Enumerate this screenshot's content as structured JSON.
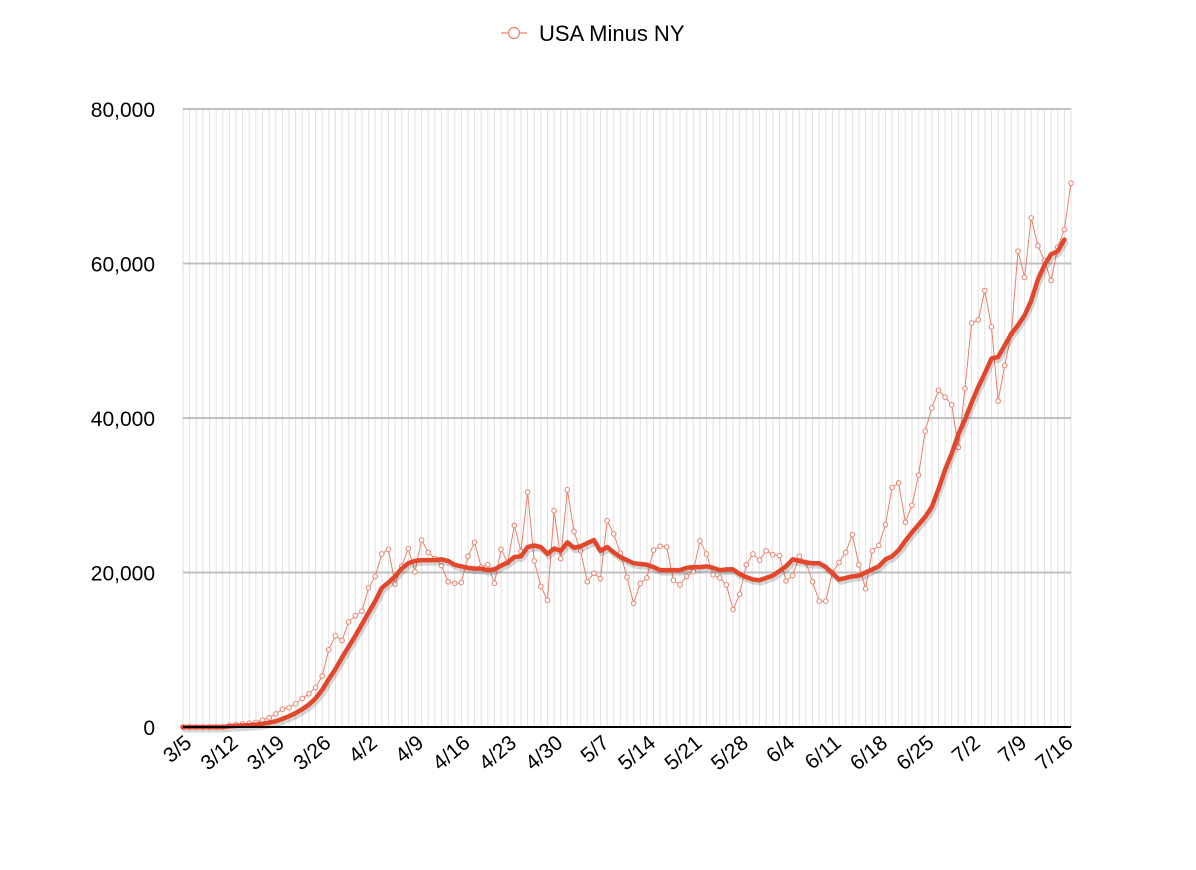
{
  "chart_data": {
    "type": "line",
    "title": "",
    "xlabel": "",
    "ylabel": "",
    "ylim": [
      0,
      80000
    ],
    "y_ticks": [
      0,
      20000,
      40000,
      60000,
      80000
    ],
    "y_tick_labels": [
      "0",
      "20,000",
      "40,000",
      "60,000",
      "80,000"
    ],
    "x_tick_labels": [
      "3/5",
      "3/12",
      "3/19",
      "3/26",
      "4/2",
      "4/9",
      "4/16",
      "4/23",
      "4/30",
      "5/7",
      "5/14",
      "5/21",
      "5/28",
      "6/4",
      "6/11",
      "6/18",
      "6/25",
      "7/2",
      "7/9",
      "7/16"
    ],
    "grid": true,
    "legend": "top-center",
    "colors": {
      "daily": "#e9806a",
      "average": "#e2462b",
      "grid_major": "#c0c0c0",
      "grid_minor": "#e0e0e0",
      "axis": "#000000"
    },
    "series": [
      {
        "name": "USA Minus NY",
        "marker": "open-circle",
        "values": [
          0,
          0,
          0,
          0,
          0,
          0,
          0,
          200,
          300,
          400,
          500,
          600,
          900,
          1200,
          1700,
          2300,
          2500,
          3000,
          3700,
          4300,
          5100,
          6600,
          10000,
          11800,
          11200,
          13600,
          14400,
          15000,
          18000,
          19500,
          22400,
          23000,
          18500,
          20800,
          23100,
          20100,
          24200,
          22600,
          21800,
          20900,
          18800,
          18600,
          18700,
          22100,
          23900,
          20700,
          21000,
          18600,
          23000,
          21300,
          26100,
          22700,
          30400,
          21500,
          18200,
          16400,
          28000,
          21800,
          30700,
          25300,
          22800,
          18800,
          19900,
          19200,
          26700,
          25000,
          22500,
          19400,
          16000,
          18600,
          19300,
          22900,
          23400,
          23300,
          19000,
          18400,
          19500,
          20100,
          24100,
          22400,
          19700,
          19300,
          18400,
          15200,
          17200,
          21000,
          22400,
          21600,
          22800,
          22300,
          22200,
          18900,
          19600,
          22100,
          21300,
          18800,
          16300,
          16300,
          20000,
          21300,
          22600,
          24900,
          21000,
          17900,
          22800,
          23500,
          26200,
          31000,
          31600,
          26500,
          28700,
          32600,
          38300,
          41300,
          43600,
          42700,
          41700,
          36200,
          43800,
          52300,
          52700,
          56500,
          51800,
          42200,
          46800,
          50900,
          61600,
          58200,
          65900,
          62300,
          60400,
          57800,
          62100,
          64400,
          70400
        ]
      },
      {
        "name": "",
        "marker": "none",
        "values": [
          0,
          0,
          0,
          0,
          0,
          0,
          0,
          100,
          140,
          190,
          240,
          310,
          420,
          550,
          750,
          1050,
          1400,
          1800,
          2300,
          2900,
          3700,
          4800,
          6200,
          7500,
          9000,
          10400,
          11800,
          13300,
          14800,
          16300,
          18000,
          18700,
          19500,
          20500,
          21200,
          21500,
          21600,
          21600,
          21600,
          21700,
          21500,
          21000,
          20800,
          20600,
          20500,
          20500,
          20300,
          20400,
          20900,
          21300,
          22000,
          22100,
          23300,
          23500,
          23300,
          22400,
          23100,
          22800,
          23900,
          23200,
          23400,
          23800,
          24200,
          22800,
          23300,
          22600,
          22000,
          21600,
          21200,
          21100,
          21000,
          20700,
          20300,
          20300,
          20300,
          20300,
          20600,
          20700,
          20700,
          20800,
          20600,
          20300,
          20400,
          20400,
          19800,
          19400,
          19100,
          19000,
          19300,
          19600,
          20200,
          20800,
          21700,
          21500,
          21300,
          21200,
          21200,
          20700,
          19900,
          19100,
          19300,
          19500,
          19600,
          20000,
          20400,
          20800,
          21700,
          22100,
          22900,
          24100,
          25200,
          26200,
          27200,
          28500,
          30800,
          33300,
          35400,
          37900,
          39800,
          42000,
          44000,
          45800,
          47700,
          47900,
          49400,
          50900,
          52000,
          53300,
          55200,
          57900,
          59800,
          61200,
          61600,
          63100
        ]
      }
    ]
  }
}
